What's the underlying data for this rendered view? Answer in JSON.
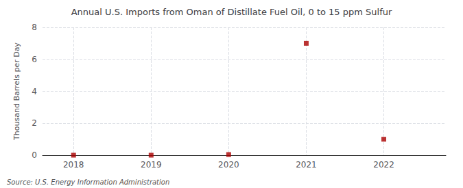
{
  "chart_data": {
    "type": "scatter",
    "title": "Annual U.S. Imports from Oman of Distillate Fuel Oil, 0 to 15 ppm Sulfur",
    "ylabel": "Thousand Barrels per Day",
    "annotation": "Source: U.S. Energy Information Administration",
    "x": [
      2018,
      2019,
      2020,
      2021,
      2022
    ],
    "values": [
      0.0,
      0.0,
      0.04,
      7.0,
      1.0
    ],
    "color": "#aa0000",
    "marker": "square",
    "xlim": [
      2017.6,
      2022.8
    ],
    "xticks": [
      2018,
      2019,
      2020,
      2021,
      2022
    ],
    "ylim": [
      0,
      8
    ],
    "yticks": [
      0,
      2,
      4,
      6,
      8
    ],
    "grid": true
  }
}
